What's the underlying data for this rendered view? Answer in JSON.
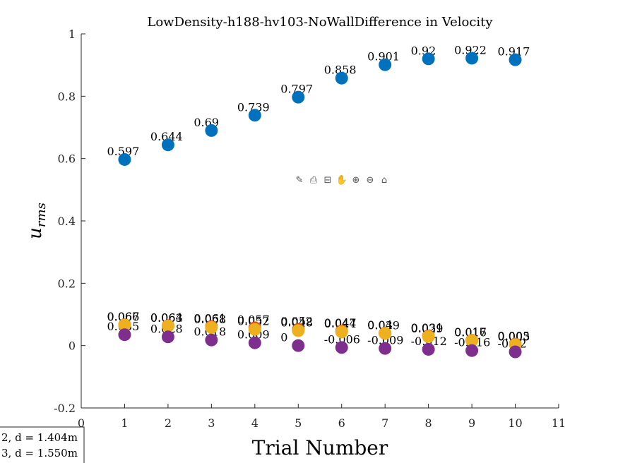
{
  "chart_data": {
    "type": "scatter",
    "title": "LowDensity-h188-hv103-NoWallDifference in Velocity",
    "xlabel": "Trial Number",
    "ylabel": "u_rms",
    "xlim": [
      0,
      11
    ],
    "ylim": [
      -0.2,
      1
    ],
    "xticks": [
      "0",
      "1",
      "2",
      "3",
      "4",
      "5",
      "6",
      "7",
      "8",
      "9",
      "10",
      "11"
    ],
    "yticks": [
      "-0.2",
      "0",
      "0.2",
      "0.4",
      "0.6",
      "0.8",
      "1"
    ],
    "x": [
      1,
      2,
      3,
      4,
      5,
      6,
      7,
      8,
      9,
      10
    ],
    "series": [
      {
        "color": "#0072BD",
        "values": [
          0.597,
          0.644,
          0.69,
          0.739,
          0.797,
          0.858,
          0.901,
          0.92,
          0.922,
          0.917
        ],
        "labels": [
          "0.597",
          "0.644",
          "0.69",
          "0.739",
          "0.797",
          "0.858",
          "0.901",
          "0.92",
          "0.922",
          "0.917"
        ]
      },
      {
        "color": "#D95319",
        "values": [
          0.067,
          0.064,
          0.061,
          0.057,
          0.052,
          0.047,
          0.04,
          0.031,
          0.017,
          0.005
        ],
        "labels": [
          "0.067",
          "0.064",
          "0.061",
          "0.057",
          "0.052",
          "0.047",
          "0.04",
          "0.031",
          "0.017",
          "0.005"
        ]
      },
      {
        "color": "#EDB120",
        "values": [
          0.066,
          0.063,
          0.058,
          0.052,
          0.048,
          0.044,
          0.039,
          0.029,
          0.016,
          0.003
        ],
        "labels": [
          "0.066",
          "0.063",
          "0.058",
          "0.052",
          "0.048",
          "0.044",
          "0.039",
          "0.029",
          "0.016",
          "0.003"
        ]
      },
      {
        "color": "#7E2F8E",
        "values": [
          0.035,
          0.028,
          0.018,
          0.009,
          0,
          -0.006,
          -0.009,
          -0.012,
          -0.016,
          -0.02
        ],
        "labels": [
          "0.035",
          "0.028",
          "0.018",
          "0.009",
          "0",
          "-0.006",
          "-0.009",
          "-0.012",
          "-0.016",
          "-0.02"
        ]
      }
    ],
    "legend": {
      "placement": "bottom-left",
      "entries": [
        "2, d = 1.404m",
        "3, d = 1.550m"
      ]
    }
  },
  "toolbar": {
    "icons": [
      "brush-icon",
      "export-icon",
      "data-tips-icon",
      "pan-icon",
      "zoom-in-icon",
      "zoom-out-icon",
      "home-icon"
    ],
    "glyphs": [
      "✎",
      "⎙",
      "⊟",
      "✋",
      "⊕",
      "⊖",
      "⌂"
    ]
  }
}
